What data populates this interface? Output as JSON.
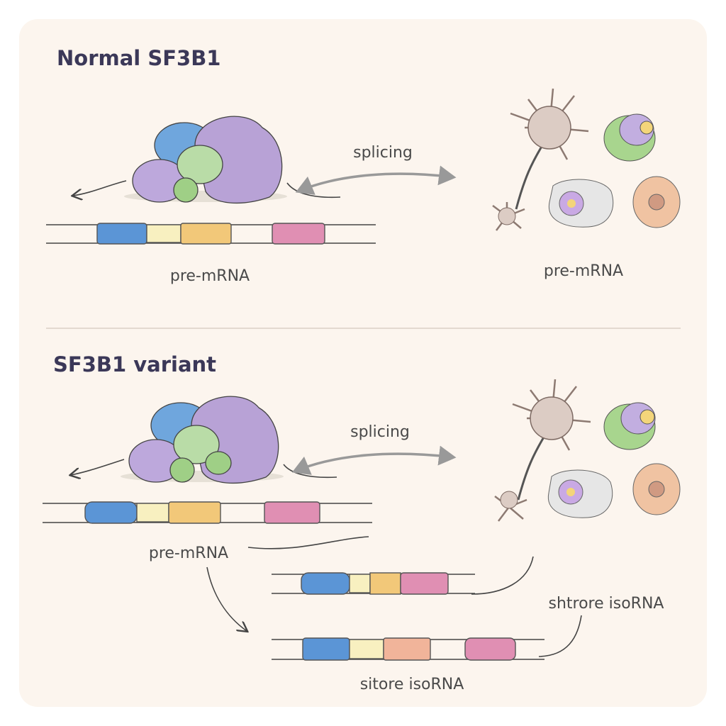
{
  "top": {
    "title": "Normal SF3B1",
    "splicing_label": "splicing",
    "premrna_label": "pre-mRNA",
    "cells_label": "pre-mRNA"
  },
  "bottom": {
    "title": "SF3B1 variant",
    "splicing_label": "splicing",
    "premrna_label": "pre-mRNA",
    "isoform1_label": "shtrore isoRNA",
    "isoform2_label": "sitore isoRNA"
  },
  "colors": {
    "background": "#fcf5ee",
    "exon_blue": "#5b95d6",
    "exon_yellow": "#f8f0c0",
    "exon_orange": "#f2c879",
    "exon_salmon": "#f1b49a",
    "exon_pink": "#e08fb3",
    "protein_purple": "#b9a3d8",
    "protein_green": "#a9d494"
  }
}
